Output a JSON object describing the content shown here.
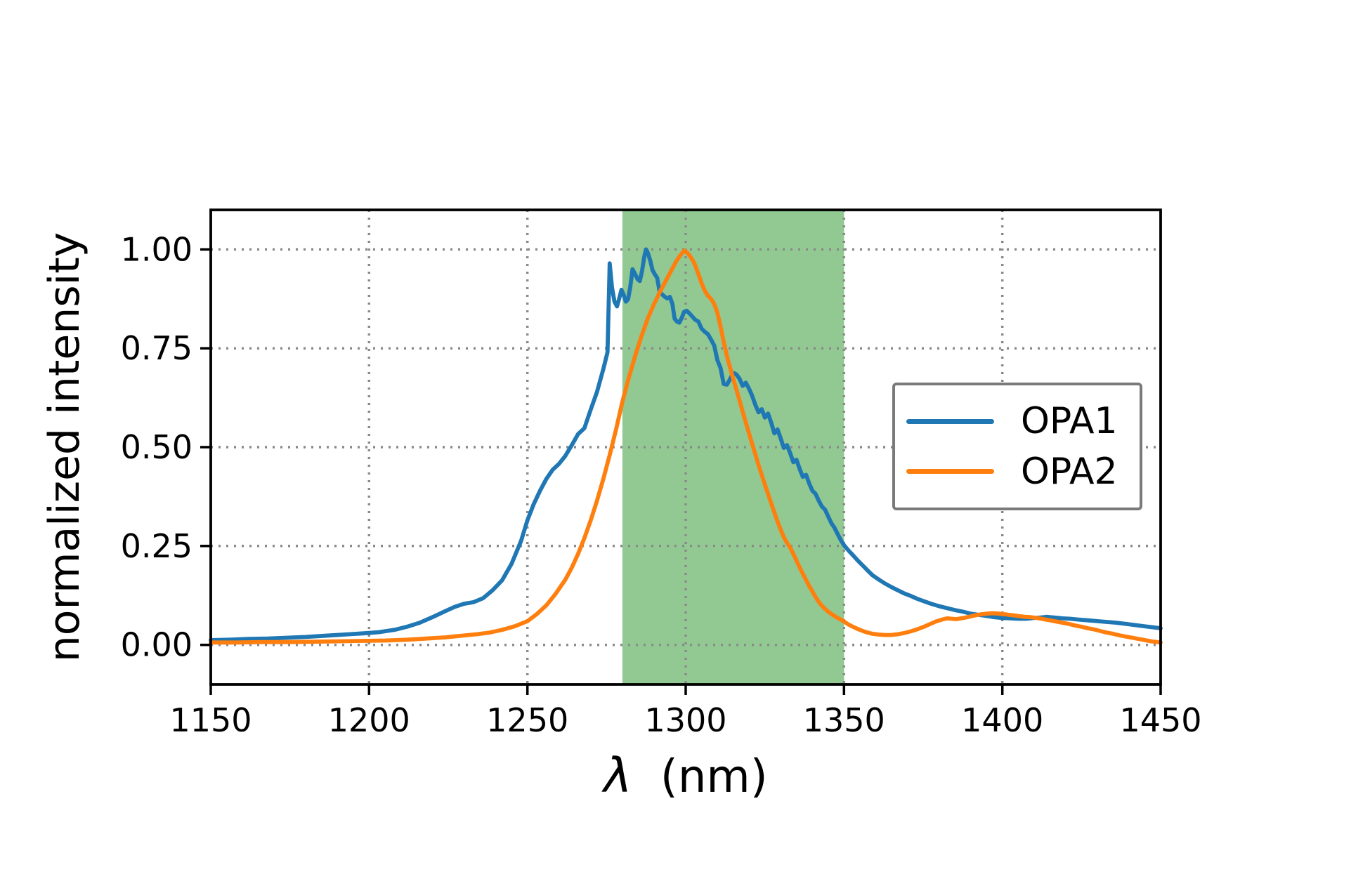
{
  "figure": {
    "background": "#ffffff"
  },
  "chart_data": {
    "type": "line",
    "title": "",
    "xlabel_symbol": "λ",
    "xlabel_unit": "(nm)",
    "ylabel": "normalized intensity",
    "xlim": [
      1150,
      1450
    ],
    "ylim": [
      -0.1,
      1.1
    ],
    "grid": "dotted",
    "grid_color": "#8a8a8a",
    "xticks": {
      "values": [
        1150,
        1200,
        1250,
        1300,
        1350,
        1400,
        1450
      ],
      "labels": [
        "1150",
        "1200",
        "1250",
        "1300",
        "1350",
        "1400",
        "1450"
      ]
    },
    "yticks": {
      "values": [
        0.0,
        0.25,
        0.5,
        0.75,
        1.0
      ],
      "labels": [
        "0.00",
        "0.25",
        "0.50",
        "0.75",
        "1.00"
      ]
    },
    "highlight_band": {
      "type": "vspan",
      "x_start": 1280,
      "x_end": 1350,
      "color": "#92c992"
    },
    "legend": {
      "position": "center right",
      "border_color": "#7a7a7a",
      "entries": [
        "OPA1",
        "OPA2"
      ]
    },
    "series": [
      {
        "name": "OPA1",
        "color": "#1f77b4",
        "x": [
          1150,
          1156,
          1162,
          1168,
          1174,
          1180,
          1186,
          1192,
          1198,
          1203,
          1208,
          1212,
          1216,
          1220,
          1224,
          1227,
          1230,
          1233,
          1236,
          1239,
          1242,
          1245,
          1248,
          1250,
          1252,
          1254,
          1256,
          1258,
          1260,
          1262,
          1264,
          1266,
          1268,
          1270,
          1272,
          1274,
          1275.3,
          1276,
          1276.7,
          1277.5,
          1278.3,
          1279,
          1279.7,
          1280.4,
          1281.1,
          1281.8,
          1282.5,
          1283.2,
          1284,
          1284.8,
          1285.5,
          1286.2,
          1287,
          1287.5,
          1288.1,
          1288.8,
          1289.5,
          1290.2,
          1291,
          1291.8,
          1292.6,
          1293.4,
          1294.2,
          1295,
          1295.8,
          1296.5,
          1297.2,
          1298,
          1298.8,
          1299.5,
          1300.3,
          1301.2,
          1302.1,
          1303,
          1304,
          1305,
          1306,
          1307,
          1308,
          1309,
          1310,
          1311,
          1312,
          1313,
          1314,
          1315,
          1316,
          1317,
          1318,
          1319,
          1320,
          1321,
          1322,
          1323,
          1324,
          1325,
          1326,
          1327,
          1328,
          1329,
          1330,
          1331,
          1332,
          1333,
          1334,
          1335,
          1336,
          1337,
          1338,
          1339,
          1340,
          1341,
          1342,
          1343,
          1344,
          1345,
          1346,
          1347,
          1348,
          1349,
          1350,
          1351.5,
          1353,
          1354.5,
          1356,
          1357.5,
          1359,
          1361,
          1363,
          1365,
          1367,
          1369,
          1371,
          1373,
          1375,
          1377.5,
          1380,
          1382.5,
          1385,
          1387.5,
          1390,
          1392.5,
          1395,
          1397.5,
          1400,
          1402.5,
          1405,
          1407.5,
          1410,
          1412,
          1414,
          1416.5,
          1419,
          1421.5,
          1424,
          1427,
          1430,
          1433,
          1436,
          1439,
          1442,
          1445,
          1448,
          1450
        ],
        "y": [
          0.012,
          0.013,
          0.015,
          0.016,
          0.018,
          0.02,
          0.023,
          0.026,
          0.029,
          0.032,
          0.038,
          0.046,
          0.056,
          0.07,
          0.085,
          0.096,
          0.104,
          0.108,
          0.118,
          0.138,
          0.163,
          0.205,
          0.263,
          0.315,
          0.356,
          0.39,
          0.42,
          0.443,
          0.458,
          0.478,
          0.505,
          0.533,
          0.548,
          0.595,
          0.64,
          0.698,
          0.74,
          0.965,
          0.905,
          0.868,
          0.856,
          0.876,
          0.898,
          0.885,
          0.868,
          0.874,
          0.905,
          0.95,
          0.938,
          0.925,
          0.92,
          0.945,
          0.985,
          1.0,
          0.99,
          0.972,
          0.948,
          0.938,
          0.928,
          0.892,
          0.886,
          0.88,
          0.876,
          0.88,
          0.862,
          0.825,
          0.818,
          0.815,
          0.828,
          0.842,
          0.845,
          0.838,
          0.83,
          0.822,
          0.818,
          0.8,
          0.792,
          0.786,
          0.772,
          0.757,
          0.72,
          0.7,
          0.66,
          0.658,
          0.672,
          0.688,
          0.684,
          0.673,
          0.655,
          0.663,
          0.648,
          0.63,
          0.607,
          0.588,
          0.596,
          0.575,
          0.585,
          0.562,
          0.535,
          0.545,
          0.522,
          0.498,
          0.505,
          0.485,
          0.462,
          0.468,
          0.445,
          0.425,
          0.43,
          0.408,
          0.39,
          0.382,
          0.365,
          0.35,
          0.342,
          0.325,
          0.308,
          0.296,
          0.28,
          0.265,
          0.252,
          0.238,
          0.225,
          0.212,
          0.2,
          0.188,
          0.176,
          0.165,
          0.155,
          0.146,
          0.138,
          0.13,
          0.124,
          0.117,
          0.111,
          0.104,
          0.098,
          0.093,
          0.088,
          0.084,
          0.079,
          0.076,
          0.073,
          0.07,
          0.068,
          0.067,
          0.066,
          0.066,
          0.068,
          0.069,
          0.071,
          0.069,
          0.067,
          0.066,
          0.064,
          0.062,
          0.06,
          0.058,
          0.056,
          0.053,
          0.05,
          0.047,
          0.044,
          0.042
        ]
      },
      {
        "name": "OPA2",
        "color": "#ff7f0e",
        "x": [
          1150,
          1158,
          1166,
          1174,
          1182,
          1190,
          1198,
          1205,
          1212,
          1218,
          1224,
          1229,
          1234,
          1238,
          1242,
          1246,
          1250,
          1253,
          1256,
          1259,
          1262,
          1264,
          1266,
          1268,
          1270,
          1272,
          1274,
          1276,
          1278,
          1280,
          1282,
          1284,
          1286,
          1288,
          1290,
          1292,
          1294,
          1295,
          1296,
          1297,
          1298,
          1299,
          1299.6,
          1300.3,
          1301,
          1302,
          1303,
          1304,
          1305,
          1306,
          1307,
          1308,
          1309,
          1310,
          1311,
          1312,
          1313,
          1314,
          1315,
          1316,
          1317,
          1318,
          1319,
          1320,
          1321,
          1322,
          1323,
          1324,
          1325,
          1326,
          1327,
          1328,
          1329,
          1330,
          1331,
          1332,
          1333,
          1334,
          1335,
          1336,
          1337,
          1338,
          1339,
          1340,
          1341,
          1342,
          1343,
          1344,
          1345,
          1346,
          1347,
          1348,
          1349,
          1350,
          1351.5,
          1353,
          1355,
          1357,
          1359,
          1361,
          1363,
          1365,
          1367,
          1369,
          1371,
          1373,
          1375,
          1377,
          1379,
          1381,
          1382.5,
          1384,
          1385.5,
          1387,
          1389,
          1391,
          1393,
          1395,
          1397,
          1399,
          1401,
          1403,
          1405,
          1407,
          1409,
          1411,
          1413,
          1415,
          1417,
          1419,
          1421,
          1423,
          1425,
          1427,
          1429,
          1431,
          1433,
          1435,
          1437,
          1439,
          1441,
          1443,
          1445,
          1447,
          1449,
          1450
        ],
        "y": [
          0.006,
          0.006,
          0.007,
          0.007,
          0.008,
          0.009,
          0.01,
          0.011,
          0.013,
          0.016,
          0.019,
          0.023,
          0.027,
          0.031,
          0.038,
          0.047,
          0.06,
          0.078,
          0.1,
          0.13,
          0.165,
          0.195,
          0.23,
          0.27,
          0.315,
          0.365,
          0.42,
          0.48,
          0.545,
          0.615,
          0.675,
          0.73,
          0.78,
          0.825,
          0.862,
          0.895,
          0.925,
          0.94,
          0.955,
          0.97,
          0.982,
          0.992,
          0.997,
          0.993,
          0.987,
          0.976,
          0.96,
          0.938,
          0.915,
          0.896,
          0.883,
          0.875,
          0.862,
          0.84,
          0.805,
          0.766,
          0.731,
          0.701,
          0.673,
          0.646,
          0.618,
          0.59,
          0.562,
          0.535,
          0.508,
          0.482,
          0.455,
          0.43,
          0.405,
          0.382,
          0.358,
          0.335,
          0.312,
          0.291,
          0.272,
          0.258,
          0.246,
          0.23,
          0.213,
          0.196,
          0.18,
          0.164,
          0.149,
          0.135,
          0.121,
          0.109,
          0.099,
          0.091,
          0.084,
          0.078,
          0.073,
          0.068,
          0.064,
          0.059,
          0.051,
          0.045,
          0.038,
          0.032,
          0.028,
          0.026,
          0.025,
          0.025,
          0.027,
          0.03,
          0.034,
          0.039,
          0.045,
          0.052,
          0.059,
          0.064,
          0.067,
          0.066,
          0.065,
          0.067,
          0.07,
          0.074,
          0.077,
          0.079,
          0.08,
          0.079,
          0.077,
          0.075,
          0.073,
          0.071,
          0.07,
          0.068,
          0.065,
          0.062,
          0.059,
          0.056,
          0.053,
          0.049,
          0.046,
          0.042,
          0.039,
          0.035,
          0.031,
          0.028,
          0.024,
          0.021,
          0.018,
          0.015,
          0.012,
          0.009,
          0.007,
          0.006
        ]
      }
    ]
  }
}
